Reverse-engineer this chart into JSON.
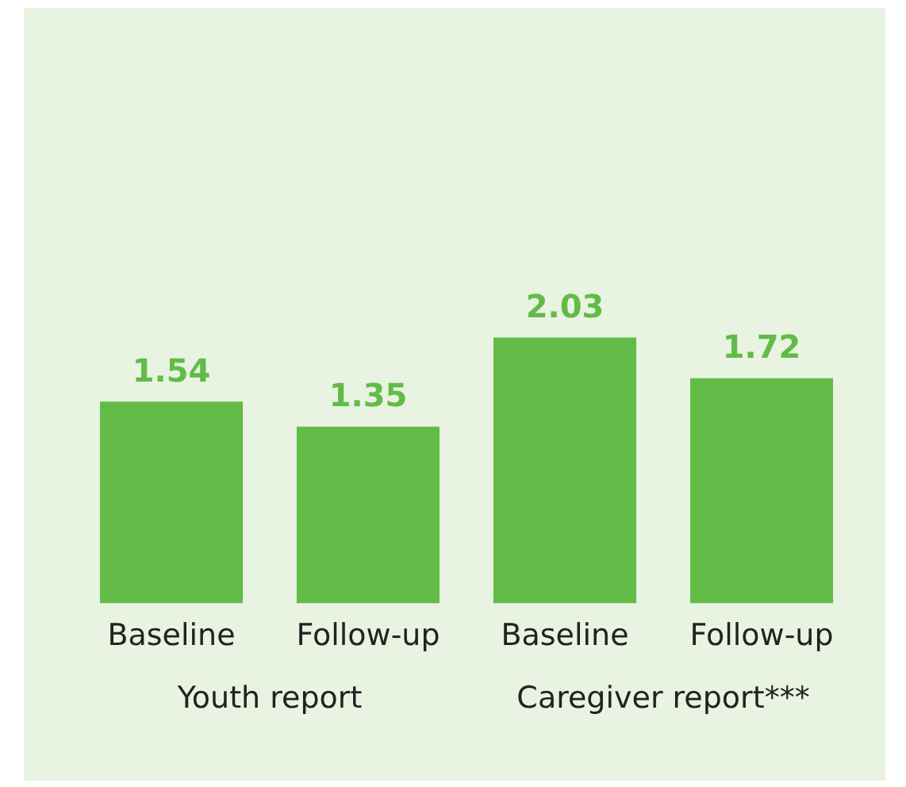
{
  "chart_data": {
    "type": "bar",
    "categories": [
      "Baseline",
      "Follow-up",
      "Baseline",
      "Follow-up"
    ],
    "values": [
      1.54,
      1.35,
      2.03,
      1.72
    ],
    "color": "#63bb47",
    "data_labels": true,
    "grid": false,
    "legend": false,
    "tick_labels": "x",
    "annotations": [
      "Youth report",
      "Caregiver report***"
    ]
  }
}
